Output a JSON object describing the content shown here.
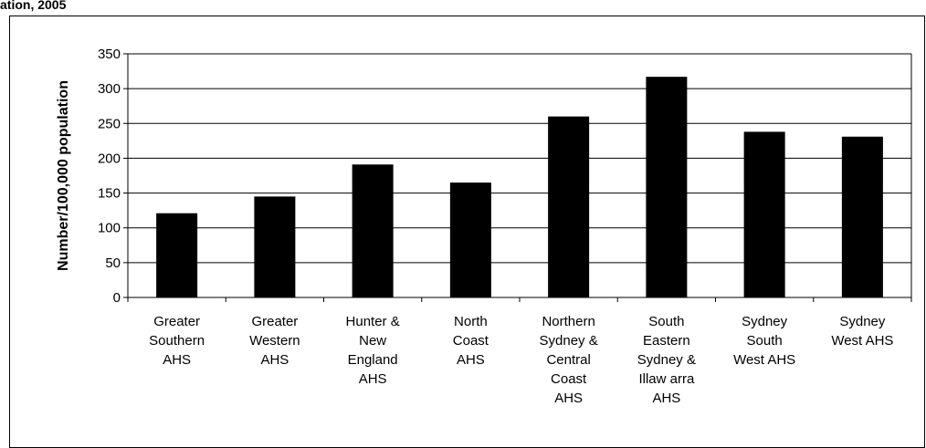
{
  "page": {
    "title_fragment": "ation, 2005"
  },
  "chart_data": {
    "type": "bar",
    "title": "",
    "xlabel": "",
    "ylabel": "Number/100,000 population",
    "ylim": [
      0,
      350
    ],
    "yticks": [
      0,
      50,
      100,
      150,
      200,
      250,
      300,
      350
    ],
    "grid": true,
    "legend": "none",
    "bar_color": "#000000",
    "categories": [
      [
        "Greater",
        "Southern",
        "AHS"
      ],
      [
        "Greater",
        "Western",
        "AHS"
      ],
      [
        "Hunter &",
        "New",
        "England",
        "AHS"
      ],
      [
        "North",
        "Coast",
        "AHS"
      ],
      [
        "Northern",
        "Sydney &",
        "Central",
        "Coast",
        "AHS"
      ],
      [
        "South",
        "Eastern",
        "Sydney &",
        "Illaw arra",
        "AHS"
      ],
      [
        "Sydney",
        "South",
        "West AHS"
      ],
      [
        "Sydney",
        "West AHS"
      ]
    ],
    "values": [
      121,
      145,
      191,
      165,
      260,
      317,
      238,
      231
    ]
  }
}
